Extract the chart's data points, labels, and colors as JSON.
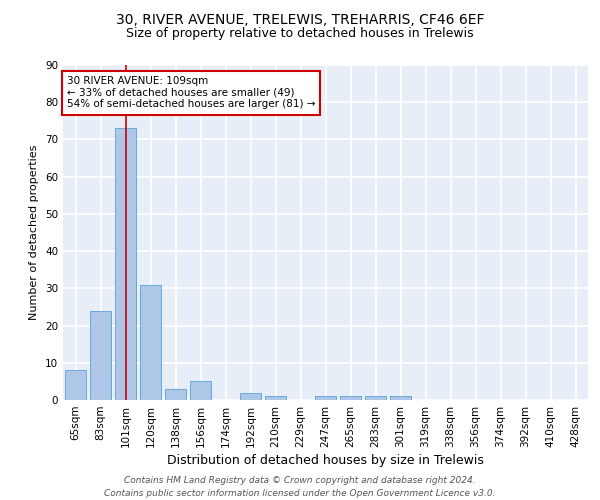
{
  "title1": "30, RIVER AVENUE, TRELEWIS, TREHARRIS, CF46 6EF",
  "title2": "Size of property relative to detached houses in Trelewis",
  "xlabel": "Distribution of detached houses by size in Trelewis",
  "ylabel": "Number of detached properties",
  "categories": [
    "65sqm",
    "83sqm",
    "101sqm",
    "120sqm",
    "138sqm",
    "156sqm",
    "174sqm",
    "192sqm",
    "210sqm",
    "229sqm",
    "247sqm",
    "265sqm",
    "283sqm",
    "301sqm",
    "319sqm",
    "338sqm",
    "356sqm",
    "374sqm",
    "392sqm",
    "410sqm",
    "428sqm"
  ],
  "values": [
    8,
    24,
    73,
    31,
    3,
    5,
    0,
    2,
    1,
    0,
    1,
    1,
    1,
    1,
    0,
    0,
    0,
    0,
    0,
    0,
    0
  ],
  "bar_color": "#aec6e8",
  "bar_edge_color": "#5a9fd4",
  "highlight_index": 2,
  "highlight_line_color": "#cc0000",
  "ylim": [
    0,
    90
  ],
  "yticks": [
    0,
    10,
    20,
    30,
    40,
    50,
    60,
    70,
    80,
    90
  ],
  "annotation_box_color": "#ffffff",
  "annotation_box_edge_color": "#cc0000",
  "annotation_text_line1": "30 RIVER AVENUE: 109sqm",
  "annotation_text_line2": "← 33% of detached houses are smaller (49)",
  "annotation_text_line3": "54% of semi-detached houses are larger (81) →",
  "footer_line1": "Contains HM Land Registry data © Crown copyright and database right 2024.",
  "footer_line2": "Contains public sector information licensed under the Open Government Licence v3.0.",
  "background_color": "#e8eef8",
  "grid_color": "#ffffff",
  "title1_fontsize": 10,
  "title2_fontsize": 9,
  "xlabel_fontsize": 9,
  "ylabel_fontsize": 8,
  "tick_fontsize": 7.5,
  "annotation_fontsize": 7.5,
  "footer_fontsize": 6.5
}
